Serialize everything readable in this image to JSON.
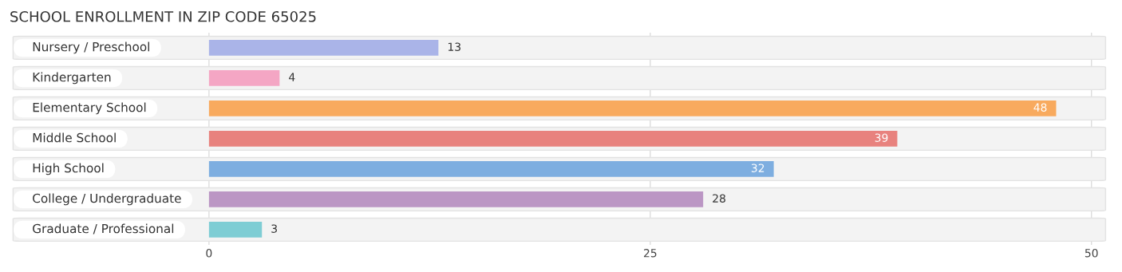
{
  "chart_data": {
    "type": "bar",
    "orientation": "horizontal",
    "title": "SCHOOL ENROLLMENT IN ZIP CODE 65025",
    "categories": [
      "Nursery / Preschool",
      "Kindergarten",
      "Elementary School",
      "Middle School",
      "High School",
      "College / Undergraduate",
      "Graduate / Professional"
    ],
    "values": [
      13,
      4,
      48,
      39,
      32,
      28,
      3
    ],
    "colors": [
      "#aab4e8",
      "#f4a6c4",
      "#f8aa5e",
      "#e8827e",
      "#7eaee0",
      "#bb96c4",
      "#7ecdd4"
    ],
    "xlim": [
      -11.3,
      51
    ],
    "xticks": [
      0,
      25,
      50
    ],
    "grid": "x",
    "data_labels": true
  }
}
